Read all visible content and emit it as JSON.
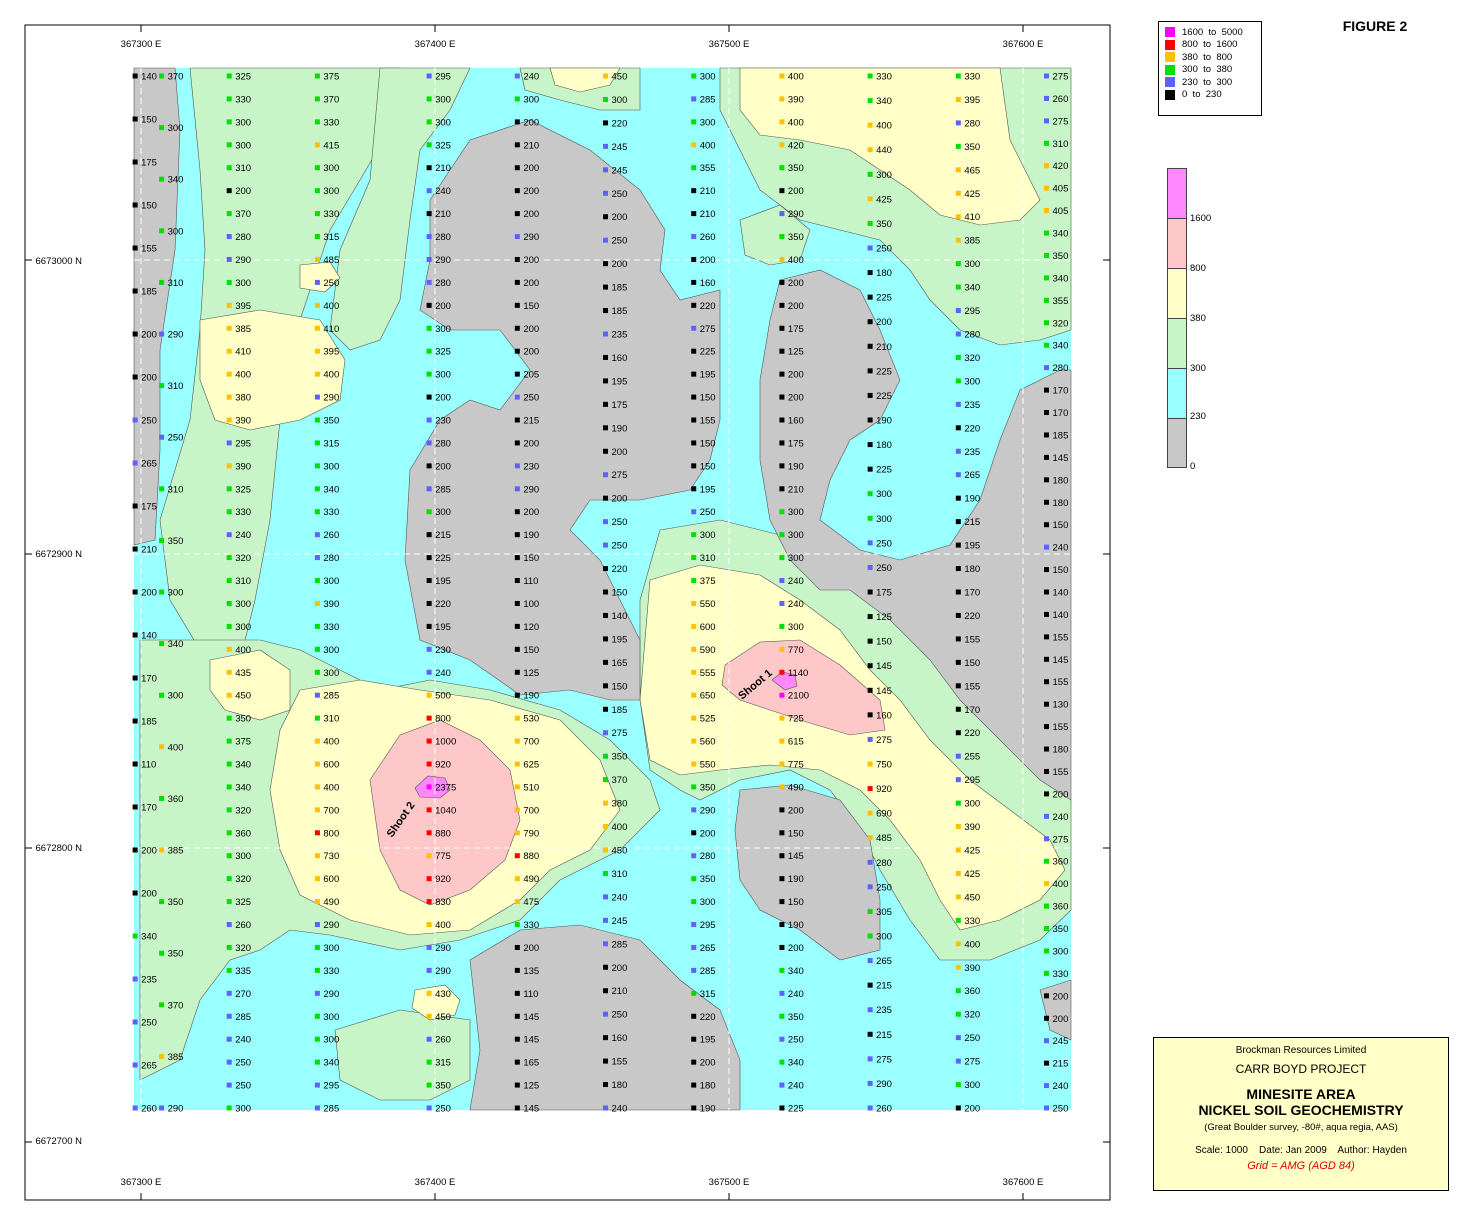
{
  "figure_label": "FIGURE 2",
  "legend": [
    {
      "label": "1600  to  5000",
      "color": "#ff00ff"
    },
    {
      "label": "800  to  1600",
      "color": "#ff0000"
    },
    {
      "label": "380  to  800",
      "color": "#ffc000"
    },
    {
      "label": "300  to  380",
      "color": "#00e000"
    },
    {
      "label": "230  to  300",
      "color": "#6060ff"
    },
    {
      "label": "0  to  230",
      "color": "#000000"
    }
  ],
  "colorbar": [
    {
      "label": "1600",
      "color": "#ff88ff"
    },
    {
      "label": "800",
      "color": "#ffc8c8"
    },
    {
      "label": "380",
      "color": "#ffffc8"
    },
    {
      "label": "300",
      "color": "#c8f5c8"
    },
    {
      "label": "230",
      "color": "#99ffff"
    },
    {
      "label": "0",
      "color": "#c8c8c8"
    }
  ],
  "axes": {
    "easting_top": [
      "367300 E",
      "367400 E",
      "367500 E",
      "367600 E"
    ],
    "easting_bottom": [
      "367300 E",
      "367400 E",
      "367500 E",
      "367600 E"
    ],
    "northing": [
      "6673000 N",
      "6672900 N",
      "6672800 N",
      "6672700 N"
    ]
  },
  "annotations": [
    "Shoot 1",
    "Shoot 2"
  ],
  "title_block": {
    "company": "Brockman Resources Limited",
    "project": "CARR BOYD PROJECT",
    "title_line1": "MINESITE AREA",
    "title_line2": "NICKEL SOIL GEOCHEMISTRY",
    "subtitle": "(Great Boulder survey, -80#, aqua regia, AAS)",
    "scale": "Scale: 1000",
    "date": "Date: Jan 2009",
    "author": "Author: Hayden",
    "grid": "Grid = AMG (AGD 84)"
  },
  "sample_lines": [
    {
      "easting": 367298,
      "values": [
        140,
        150,
        175,
        150,
        155,
        185,
        200,
        200,
        250,
        265,
        175,
        210,
        200,
        140,
        170,
        185,
        110,
        170,
        200,
        200,
        340,
        235,
        250,
        265,
        260
      ]
    },
    {
      "easting": 367307,
      "values": [
        370,
        300,
        340,
        300,
        310,
        290,
        310,
        250,
        310,
        350,
        300,
        340,
        300,
        400,
        360,
        385,
        350,
        350,
        370,
        385,
        290
      ]
    },
    {
      "easting": 367330,
      "values": [
        325,
        330,
        300,
        300,
        310,
        200,
        370,
        280,
        290,
        300,
        395,
        385,
        410,
        400,
        380,
        390,
        295,
        390,
        325,
        330,
        240,
        320,
        310,
        300,
        300,
        400,
        435,
        450,
        350,
        375,
        340,
        340,
        320,
        360,
        300,
        320,
        325,
        260,
        320,
        335,
        270,
        285,
        240,
        250,
        250,
        300
      ]
    },
    {
      "easting": 367360,
      "values": [
        375,
        370,
        330,
        415,
        300,
        300,
        330,
        315,
        485,
        250,
        400,
        410,
        395,
        400,
        290,
        350,
        315,
        300,
        340,
        330,
        260,
        280,
        300,
        390,
        330,
        300,
        300,
        285,
        310,
        400,
        600,
        400,
        700,
        800,
        730,
        600,
        490,
        290,
        300,
        330,
        290,
        300,
        300,
        340,
        295,
        285
      ]
    },
    {
      "easting": 367398,
      "values": [
        295,
        300,
        300,
        325,
        210,
        240,
        210,
        280,
        290,
        280,
        200,
        300,
        325,
        300,
        200,
        230,
        280,
        200,
        285,
        300,
        215,
        225,
        195,
        220,
        195,
        230,
        240,
        500,
        800,
        1000,
        920,
        2375,
        1040,
        880,
        775,
        920,
        830,
        400,
        290,
        290,
        430,
        450,
        260,
        315,
        350,
        250
      ]
    },
    {
      "easting": 367428,
      "values": [
        240,
        300,
        200,
        210,
        200,
        200,
        200,
        290,
        200,
        200,
        150,
        200,
        200,
        205,
        250,
        215,
        200,
        230,
        290,
        200,
        190,
        150,
        110,
        100,
        120,
        150,
        125,
        190,
        530,
        700,
        625,
        510,
        700,
        790,
        880,
        490,
        475,
        330,
        200,
        135,
        110,
        145,
        145,
        165,
        125,
        145
      ]
    },
    {
      "easting": 367458,
      "values": [
        450,
        300,
        220,
        245,
        245,
        250,
        200,
        250,
        200,
        185,
        185,
        235,
        160,
        195,
        175,
        190,
        200,
        275,
        200,
        250,
        250,
        220,
        150,
        140,
        195,
        165,
        150,
        185,
        275,
        350,
        370,
        380,
        400,
        450,
        310,
        240,
        245,
        285,
        200,
        210,
        250,
        160,
        155,
        180,
        240
      ]
    },
    {
      "easting": 367488,
      "values": [
        300,
        285,
        300,
        400,
        355,
        210,
        210,
        260,
        200,
        160,
        220,
        275,
        225,
        195,
        150,
        155,
        150,
        150,
        195,
        250,
        300,
        310,
        375,
        550,
        600,
        590,
        555,
        650,
        525,
        560,
        550,
        350,
        290,
        200,
        280,
        350,
        300,
        295,
        265,
        285,
        315,
        220,
        195,
        200,
        180,
        190
      ]
    },
    {
      "easting": 367518,
      "values": [
        400,
        390,
        400,
        420,
        350,
        200,
        290,
        350,
        400,
        200,
        200,
        175,
        125,
        200,
        200,
        160,
        175,
        190,
        210,
        300,
        300,
        300,
        240,
        240,
        300,
        770,
        1140,
        2100,
        725,
        615,
        775,
        490,
        200,
        150,
        145,
        190,
        150,
        190,
        200,
        340,
        240,
        350,
        250,
        340,
        240,
        225
      ]
    },
    {
      "easting": 367548,
      "values": [
        330,
        340,
        400,
        440,
        300,
        425,
        350,
        250,
        180,
        225,
        200,
        210,
        225,
        225,
        190,
        180,
        225,
        300,
        300,
        250,
        250,
        175,
        125,
        150,
        145,
        145,
        160,
        275,
        750,
        920,
        690,
        485,
        280,
        250,
        305,
        300,
        265,
        215,
        235,
        215,
        275,
        290,
        260
      ]
    },
    {
      "easting": 367578,
      "values": [
        330,
        395,
        280,
        350,
        465,
        425,
        410,
        385,
        300,
        340,
        295,
        280,
        320,
        300,
        235,
        220,
        235,
        265,
        190,
        215,
        195,
        180,
        170,
        220,
        155,
        150,
        155,
        170,
        220,
        255,
        295,
        300,
        390,
        425,
        425,
        450,
        330,
        400,
        390,
        360,
        320,
        250,
        275,
        300,
        200
      ]
    },
    {
      "easting": 367608,
      "values": [
        275,
        260,
        275,
        310,
        420,
        405,
        405,
        340,
        350,
        340,
        355,
        320,
        340,
        280,
        170,
        170,
        185,
        145,
        180,
        180,
        150,
        240,
        150,
        140,
        140,
        155,
        145,
        155,
        130,
        155,
        180,
        155,
        200,
        240,
        275,
        360,
        400,
        360,
        350,
        300,
        330,
        200,
        200,
        245,
        215,
        240,
        250
      ]
    }
  ]
}
